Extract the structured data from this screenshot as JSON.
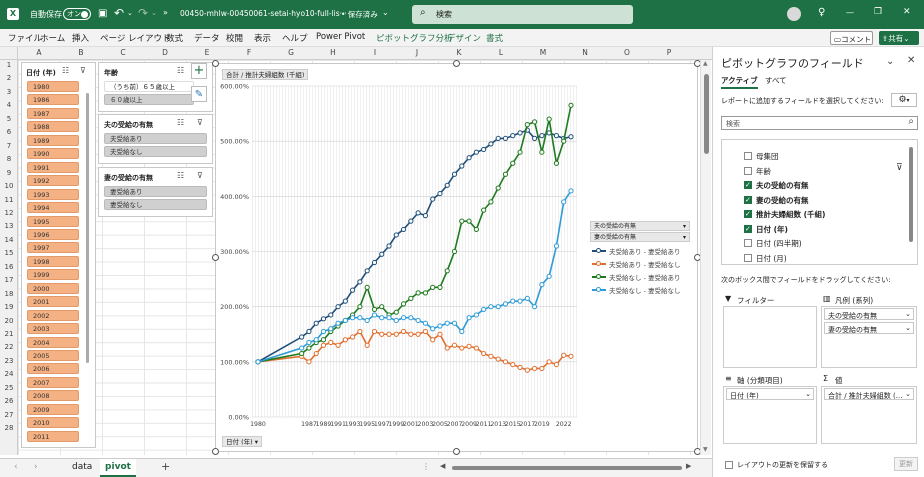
{
  "titlebar": {
    "autosave": "自動保存",
    "toggle": "オン",
    "filename": "00450-mhlw-00450061-setai-hyo10-full-lis···",
    "saved": "• 保存済み",
    "search_placeholder": "検索",
    "minimize": "—",
    "restore": "❐",
    "close": "✕"
  },
  "menu": {
    "items": [
      "ファイル",
      "ホーム",
      "挿入",
      "ページ レイアウト",
      "数式",
      "データ",
      "校閲",
      "表示",
      "ヘルプ",
      "Power Pivot",
      "ピボットグラフ分析",
      "デザイン",
      "書式"
    ],
    "comment": "コメント",
    "share": "共有"
  },
  "columns": [
    "A",
    "B",
    "C",
    "D",
    "E",
    "F",
    "G",
    "H",
    "I",
    "J",
    "K",
    "L",
    "M",
    "N",
    "O",
    "P"
  ],
  "rows": [
    "1",
    "2",
    "3",
    "4",
    "5",
    "6",
    "7",
    "8",
    "9",
    "10",
    "11",
    "12",
    "13",
    "14",
    "15",
    "16",
    "17",
    "18",
    "19",
    "20",
    "21",
    "22",
    "23",
    "24",
    "25",
    "26",
    "27",
    "28"
  ],
  "slicer_year": {
    "title": "日付 (年)",
    "items": [
      "1980",
      "1986",
      "1987",
      "1988",
      "1989",
      "1990",
      "1991",
      "1992",
      "1993",
      "1994",
      "1995",
      "1996",
      "1997",
      "1998",
      "1999",
      "2000",
      "2001",
      "2002",
      "2003",
      "2004",
      "2005",
      "2006",
      "2007",
      "2008",
      "2009",
      "2010",
      "2011"
    ]
  },
  "slicer_age": {
    "title": "年齢",
    "items": [
      "（うち前）６５歳以上",
      "６０歳以上"
    ]
  },
  "slicer_husband": {
    "title": "夫の受給の有無",
    "items": [
      "夫受給あり",
      "夫受給なし"
    ]
  },
  "slicer_wife": {
    "title": "妻の受給の有無",
    "items": [
      "妻受給あり",
      "妻受給なし"
    ]
  },
  "chart": {
    "value_field": "合計 / 推計夫婦組数 (千組)",
    "axis_field": "日付 (年)",
    "legend_field1": "夫の受給の有無",
    "legend_field2": "妻の受給の有無"
  },
  "chart_data": {
    "type": "line",
    "ylim": [
      0,
      600
    ],
    "yticks": [
      "0.00%",
      "100.00%",
      "200.00%",
      "300.00%",
      "400.00%",
      "500.00%",
      "600.00%"
    ],
    "x": [
      1980,
      1986,
      1987,
      1988,
      1989,
      1990,
      1991,
      1992,
      1993,
      1994,
      1995,
      1996,
      1997,
      1998,
      1999,
      2000,
      2001,
      2002,
      2003,
      2004,
      2005,
      2006,
      2007,
      2008,
      2009,
      2010,
      2011,
      2012,
      2013,
      2014,
      2015,
      2016,
      2017,
      2018,
      2019,
      2020,
      2021,
      2022,
      2023
    ],
    "xticks": [
      "1980",
      "1987",
      "1989",
      "1991",
      "1993",
      "1995",
      "1997",
      "1999",
      "2001",
      "2003",
      "2005",
      "2007",
      "2009",
      "2011",
      "2013",
      "2015",
      "2017",
      "2019",
      "2022"
    ],
    "series": [
      {
        "name": "夫受給あり - 妻受給あり",
        "color": "#1f4e79",
        "values": [
          100,
          145,
          155,
          170,
          178,
          185,
          200,
          210,
          230,
          245,
          265,
          280,
          295,
          310,
          330,
          340,
          355,
          370,
          365,
          395,
          405,
          420,
          440,
          455,
          470,
          480,
          485,
          495,
          505,
          505,
          510,
          515,
          520,
          505,
          510,
          515,
          510,
          505,
          508
        ]
      },
      {
        "name": "夫受給あり - 妻受給なし",
        "color": "#e07030",
        "values": [
          100,
          110,
          100,
          115,
          130,
          135,
          130,
          140,
          145,
          155,
          130,
          155,
          150,
          150,
          150,
          155,
          150,
          150,
          155,
          140,
          150,
          125,
          130,
          125,
          128,
          125,
          115,
          110,
          105,
          100,
          95,
          90,
          85,
          88,
          88,
          100,
          95,
          112,
          110
        ]
      },
      {
        "name": "夫受給なし - 妻受給あり",
        "color": "#1e7a1e",
        "values": [
          100,
          115,
          125,
          135,
          140,
          155,
          165,
          175,
          185,
          200,
          235,
          195,
          200,
          185,
          190,
          205,
          215,
          225,
          225,
          235,
          235,
          265,
          300,
          355,
          355,
          340,
          375,
          390,
          415,
          440,
          460,
          480,
          530,
          535,
          480,
          540,
          460,
          500,
          565
        ]
      },
      {
        "name": "夫受給なし - 妻受給なし",
        "color": "#2e9bd6",
        "values": [
          100,
          125,
          135,
          140,
          155,
          160,
          170,
          175,
          180,
          180,
          175,
          185,
          180,
          180,
          175,
          180,
          180,
          175,
          170,
          160,
          165,
          170,
          170,
          155,
          180,
          185,
          195,
          200,
          200,
          205,
          210,
          210,
          215,
          200,
          240,
          255,
          310,
          390,
          410
        ]
      }
    ]
  },
  "pane": {
    "title": "ピボットグラフのフィールド",
    "tab_active": "アクティブ",
    "tab_all": "すべて",
    "instruction": "レポートに追加するフィールドを選択してください:",
    "search_placeholder": "検索",
    "fields": [
      {
        "label": "母集団",
        "checked": false
      },
      {
        "label": "年齢",
        "checked": false
      },
      {
        "label": "夫の受給の有無",
        "checked": true
      },
      {
        "label": "妻の受給の有無",
        "checked": true
      },
      {
        "label": "推計夫婦組数 (千組)",
        "checked": true
      },
      {
        "label": "日付 (年)",
        "checked": true
      },
      {
        "label": "日付 (四半期)",
        "checked": false
      },
      {
        "label": "日付 (月)",
        "checked": false
      }
    ],
    "drag_hint": "次のボックス間でフィールドをドラッグしてください:",
    "filter_label": "フィルター",
    "legend_label": "凡例 (系列)",
    "legend_items": [
      "夫の受給の有無",
      "妻の受給の有無"
    ],
    "axis_label": "軸 (分類項目)",
    "axis_items": [
      "日付 (年)"
    ],
    "values_label": "値",
    "values_items": [
      "合計 / 推計夫婦組数 (..."
    ],
    "defer_label": "レイアウトの更新を保留する",
    "update_label": "更新"
  },
  "sheets": {
    "tabs": [
      "data",
      "pivot"
    ],
    "active": "pivot",
    "add": "+"
  }
}
